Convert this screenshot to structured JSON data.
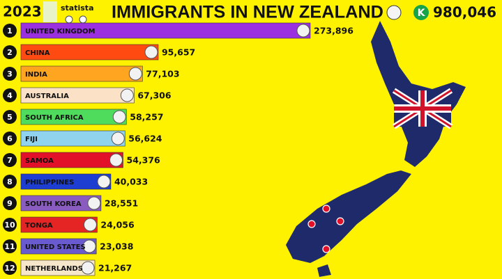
{
  "chart_data": {
    "type": "bar",
    "orientation": "horizontal",
    "year": "2023",
    "title": "IMMIGRANTS IN NEW ZEALAND",
    "source": "statista",
    "channel_logo": "K",
    "total": "980,046",
    "ranks": [
      1,
      2,
      3,
      4,
      5,
      6,
      7,
      8,
      9,
      10,
      11,
      12
    ],
    "categories": [
      "UNITED KINGDOM",
      "CHINA",
      "INDIA",
      "AUSTRALIA",
      "SOUTH AFRICA",
      "FIJI",
      "SAMOA",
      "PHILIPPINES",
      "SOUTH KOREA",
      "TONGA",
      "UNITED STATES",
      "NETHERLANDS"
    ],
    "values": [
      273896,
      95657,
      77103,
      67306,
      58257,
      56624,
      54376,
      40033,
      28551,
      24056,
      23038,
      21267
    ],
    "value_labels": [
      "273,896",
      "95,657",
      "77,103",
      "67,306",
      "58,257",
      "56,624",
      "54,376",
      "40,033",
      "28,551",
      "24,056",
      "23,038",
      "21,267"
    ],
    "colors": [
      "#9b30e0",
      "#ff4a12",
      "#ffa51f",
      "#fbe2c6",
      "#4fdc5c",
      "#8fd3ee",
      "#e3102a",
      "#1d3ed0",
      "#8a5cc0",
      "#e52424",
      "#6a5ad0",
      "#f6e7cb"
    ]
  }
}
